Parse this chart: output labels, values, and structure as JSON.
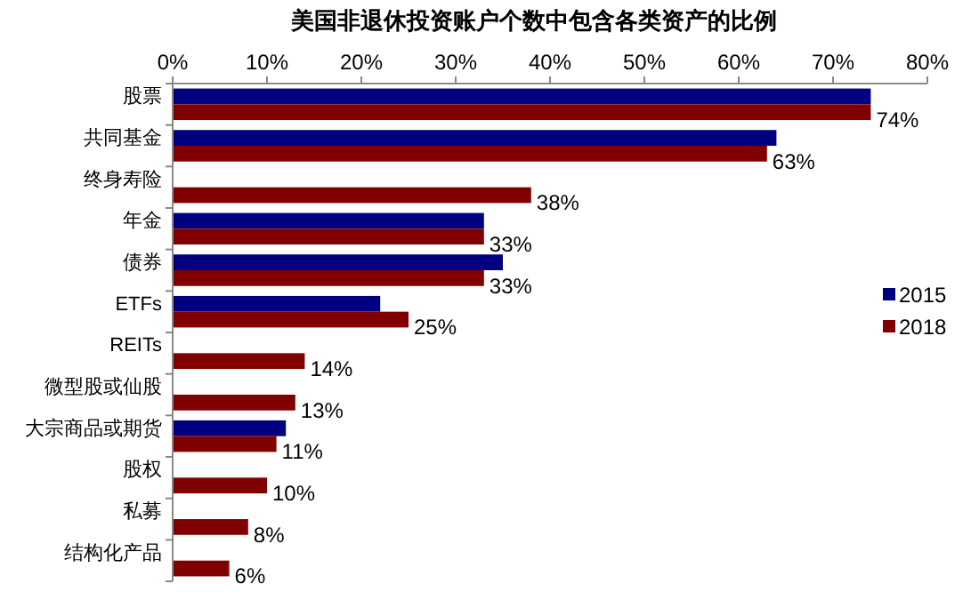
{
  "chart_data": {
    "type": "bar",
    "orientation": "horizontal",
    "title": "美国非退休投资账户个数中包含各类资产的比例",
    "categories": [
      "股票",
      "共同基金",
      "终身寿险",
      "年金",
      "债券",
      "ETFs",
      "REITs",
      "微型股或仙股",
      "大宗商品或期货",
      "股权",
      "私募",
      "结构化产品"
    ],
    "series": [
      {
        "name": "2015",
        "color": "#000080",
        "values": [
          74,
          64,
          null,
          33,
          35,
          22,
          null,
          null,
          12,
          null,
          null,
          null
        ]
      },
      {
        "name": "2018",
        "color": "#800000",
        "values": [
          74,
          63,
          38,
          33,
          33,
          25,
          14,
          13,
          11,
          10,
          8,
          6
        ],
        "value_labels": [
          "74%",
          "63%",
          "38%",
          "33%",
          "33%",
          "25%",
          "14%",
          "13%",
          "11%",
          "10%",
          "8%",
          "6%"
        ]
      }
    ],
    "xlim": [
      0,
      80
    ],
    "xticks": [
      {
        "value": 0,
        "label": "0%"
      },
      {
        "value": 10,
        "label": "10%"
      },
      {
        "value": 20,
        "label": "20%"
      },
      {
        "value": 30,
        "label": "30%"
      },
      {
        "value": 40,
        "label": "40%"
      },
      {
        "value": 50,
        "label": "50%"
      },
      {
        "value": 60,
        "label": "60%"
      },
      {
        "value": 70,
        "label": "70%"
      },
      {
        "value": 80,
        "label": "80%"
      }
    ],
    "grid": false,
    "legend": "right"
  }
}
